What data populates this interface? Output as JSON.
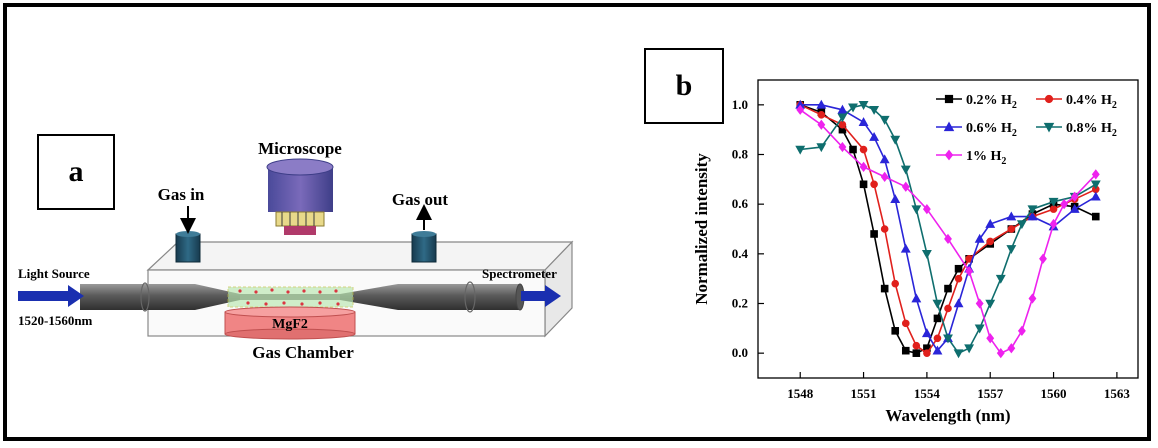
{
  "panel_a": {
    "label": "a",
    "microscope": "Microscope",
    "gas_in": "Gas in",
    "gas_out": "Gas out",
    "light_source": "Light Source",
    "wavelength_range": "1520-1560nm",
    "spectrometer": "Spectrometer",
    "substrate": "MgF2",
    "chamber": "Gas Chamber"
  },
  "panel_b": {
    "label": "b",
    "legend": [
      {
        "pre": "0.2% H",
        "sub": "2"
      },
      {
        "pre": "0.4% H",
        "sub": "2"
      },
      {
        "pre": "0.6% H",
        "sub": "2"
      },
      {
        "pre": "0.8% H",
        "sub": "2"
      },
      {
        "pre": "1% H",
        "sub": "2"
      }
    ]
  },
  "chart_data": {
    "type": "line",
    "xlabel": "Wavelength (nm)",
    "ylabel": "Normalized intensity",
    "xlim": [
      1546,
      1564
    ],
    "ylim": [
      -0.1,
      1.1
    ],
    "xticks": [
      1548,
      1551,
      1554,
      1557,
      1560,
      1563
    ],
    "yticks": [
      0.0,
      0.2,
      0.4,
      0.6,
      0.8,
      1.0
    ],
    "grid": false,
    "legend_position": "top-right",
    "series": [
      {
        "name": "0.2% H2",
        "color": "#000000",
        "marker": "square",
        "points": [
          [
            1548,
            1.0
          ],
          [
            1549,
            0.97
          ],
          [
            1550,
            0.9
          ],
          [
            1550.5,
            0.82
          ],
          [
            1551,
            0.68
          ],
          [
            1551.5,
            0.48
          ],
          [
            1552,
            0.26
          ],
          [
            1552.5,
            0.09
          ],
          [
            1553,
            0.01
          ],
          [
            1553.5,
            0.0
          ],
          [
            1554,
            0.02
          ],
          [
            1554.5,
            0.14
          ],
          [
            1555,
            0.26
          ],
          [
            1555.5,
            0.34
          ],
          [
            1556,
            0.38
          ],
          [
            1557,
            0.44
          ],
          [
            1558,
            0.5
          ],
          [
            1559,
            0.56
          ],
          [
            1560,
            0.6
          ],
          [
            1561,
            0.59
          ],
          [
            1562,
            0.55
          ]
        ]
      },
      {
        "name": "0.4% H2",
        "color": "#e0201c",
        "marker": "circle",
        "points": [
          [
            1548,
            1.0
          ],
          [
            1549,
            0.96
          ],
          [
            1550,
            0.92
          ],
          [
            1551,
            0.82
          ],
          [
            1551.5,
            0.68
          ],
          [
            1552,
            0.5
          ],
          [
            1552.5,
            0.28
          ],
          [
            1553,
            0.12
          ],
          [
            1553.5,
            0.03
          ],
          [
            1554,
            0.0
          ],
          [
            1554.5,
            0.06
          ],
          [
            1555,
            0.18
          ],
          [
            1555.5,
            0.3
          ],
          [
            1556,
            0.38
          ],
          [
            1557,
            0.45
          ],
          [
            1558,
            0.5
          ],
          [
            1559,
            0.55
          ],
          [
            1560,
            0.58
          ],
          [
            1561,
            0.62
          ],
          [
            1562,
            0.66
          ]
        ]
      },
      {
        "name": "0.6% H2",
        "color": "#2a25d8",
        "marker": "triangle-up",
        "points": [
          [
            1548,
            1.0
          ],
          [
            1549,
            1.0
          ],
          [
            1550,
            0.98
          ],
          [
            1551,
            0.93
          ],
          [
            1551.5,
            0.87
          ],
          [
            1552,
            0.78
          ],
          [
            1552.5,
            0.62
          ],
          [
            1553,
            0.42
          ],
          [
            1553.5,
            0.22
          ],
          [
            1554,
            0.08
          ],
          [
            1554.5,
            0.01
          ],
          [
            1555,
            0.06
          ],
          [
            1555.5,
            0.2
          ],
          [
            1556,
            0.34
          ],
          [
            1556.5,
            0.46
          ],
          [
            1557,
            0.52
          ],
          [
            1558,
            0.55
          ],
          [
            1559,
            0.55
          ],
          [
            1560,
            0.51
          ],
          [
            1561,
            0.58
          ],
          [
            1562,
            0.63
          ]
        ]
      },
      {
        "name": "0.8% H2",
        "color": "#0f6e6e",
        "marker": "triangle-down",
        "points": [
          [
            1548,
            0.82
          ],
          [
            1549,
            0.83
          ],
          [
            1550,
            0.95
          ],
          [
            1550.5,
            0.99
          ],
          [
            1551,
            1.0
          ],
          [
            1551.5,
            0.98
          ],
          [
            1552,
            0.94
          ],
          [
            1552.5,
            0.86
          ],
          [
            1553,
            0.74
          ],
          [
            1553.5,
            0.58
          ],
          [
            1554,
            0.4
          ],
          [
            1554.5,
            0.2
          ],
          [
            1555,
            0.06
          ],
          [
            1555.5,
            0.0
          ],
          [
            1556,
            0.02
          ],
          [
            1556.5,
            0.1
          ],
          [
            1557,
            0.2
          ],
          [
            1557.5,
            0.3
          ],
          [
            1558,
            0.42
          ],
          [
            1558.5,
            0.52
          ],
          [
            1559,
            0.58
          ],
          [
            1560,
            0.61
          ],
          [
            1561,
            0.63
          ],
          [
            1562,
            0.68
          ]
        ]
      },
      {
        "name": "1% H2",
        "color": "#ee22ee",
        "marker": "diamond",
        "points": [
          [
            1548,
            0.98
          ],
          [
            1549,
            0.92
          ],
          [
            1550,
            0.83
          ],
          [
            1551,
            0.75
          ],
          [
            1552,
            0.71
          ],
          [
            1553,
            0.67
          ],
          [
            1554,
            0.58
          ],
          [
            1555,
            0.46
          ],
          [
            1556,
            0.33
          ],
          [
            1556.5,
            0.2
          ],
          [
            1557,
            0.06
          ],
          [
            1557.5,
            0.0
          ],
          [
            1558,
            0.02
          ],
          [
            1558.5,
            0.09
          ],
          [
            1559,
            0.22
          ],
          [
            1559.5,
            0.38
          ],
          [
            1560,
            0.52
          ],
          [
            1560.5,
            0.6
          ],
          [
            1561,
            0.63
          ],
          [
            1562,
            0.72
          ]
        ]
      }
    ]
  }
}
